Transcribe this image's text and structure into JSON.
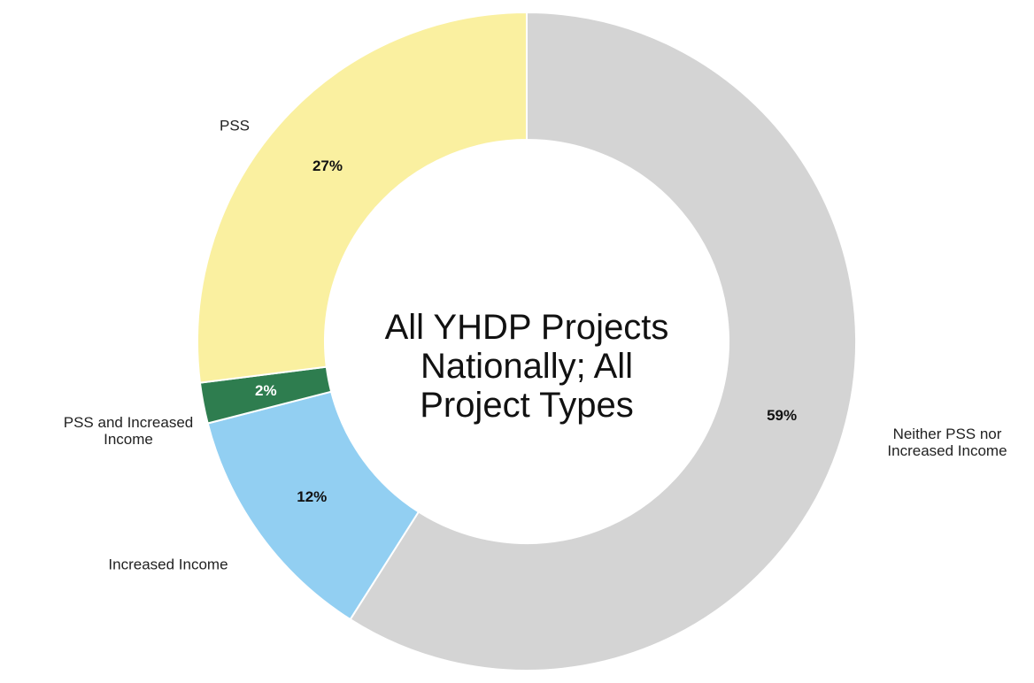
{
  "chart_data": {
    "type": "donut",
    "center_text": "All YHDP Projects Nationally; All Project Types",
    "categories": [
      "Neither PSS nor Increased Income",
      "Increased Income",
      "PSS and Increased Income",
      "PSS"
    ],
    "values": [
      59,
      12,
      2,
      27
    ],
    "value_labels": [
      "59%",
      "12%",
      "2%",
      "27%"
    ],
    "colors": [
      "#d4d4d4",
      "#92cff2",
      "#2e7d4f",
      "#faf0a0"
    ]
  }
}
